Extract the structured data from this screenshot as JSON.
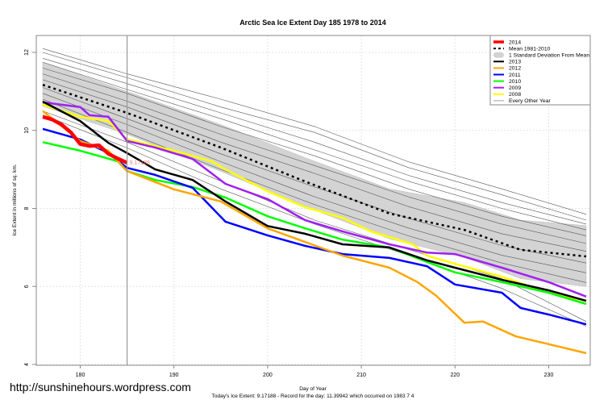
{
  "chart_data": {
    "type": "line",
    "title": "Arctic Sea Ice Extent Day 185 1978 to 2014",
    "xlabel": "Day of Year",
    "ylabel": "Ice Extent in millions of sq. km.",
    "subtitle": "Today's Ice Extent: 9.17188  - Record for the day: 11.39942 which occurred on 1983 7 4",
    "xlim": [
      175.5,
      235
    ],
    "ylim": [
      4,
      12.5
    ],
    "xticks": [
      180,
      190,
      200,
      210,
      220,
      230
    ],
    "yticks": [
      4,
      6,
      8,
      10,
      12
    ],
    "grid": true,
    "legend_position": "top-right",
    "current_day": 185,
    "current_value_label": "9.17188",
    "legend": [
      {
        "label": "2014",
        "color": "#ff0000",
        "style": "thick"
      },
      {
        "label": "Mean 1981-2010",
        "color": "#000000",
        "style": "dashed"
      },
      {
        "label": "1 Standard Deviation From Mean",
        "color": "#d3d3d3",
        "style": "band"
      },
      {
        "label": "2013",
        "color": "#000000",
        "style": "solid"
      },
      {
        "label": "2012",
        "color": "#ffa500",
        "style": "solid"
      },
      {
        "label": "2011",
        "color": "#0000ff",
        "style": "solid"
      },
      {
        "label": "2010",
        "color": "#00ff00",
        "style": "solid"
      },
      {
        "label": "2009",
        "color": "#a020f0",
        "style": "solid"
      },
      {
        "label": "2008",
        "color": "#ffff00",
        "style": "solid"
      },
      {
        "label": "Every Other Year",
        "color": "#a0a0a0",
        "style": "thin"
      }
    ],
    "mean": {
      "name": "Mean 1981-2010",
      "points": [
        [
          176,
          11.17
        ],
        [
          185,
          10.45
        ],
        [
          195,
          9.56
        ],
        [
          204,
          8.69
        ],
        [
          213,
          7.87
        ],
        [
          221,
          7.45
        ],
        [
          227,
          6.94
        ],
        [
          234,
          6.77
        ]
      ]
    },
    "std_band": {
      "name": "1 Standard Deviation From Mean",
      "upper": [
        [
          176,
          11.75
        ],
        [
          185,
          11.0
        ],
        [
          195,
          10.15
        ],
        [
          204,
          9.3
        ],
        [
          213,
          8.5
        ],
        [
          221,
          8.15
        ],
        [
          227,
          7.7
        ],
        [
          234,
          7.56
        ]
      ],
      "lower": [
        [
          176,
          10.62
        ],
        [
          185,
          9.9
        ],
        [
          195,
          8.95
        ],
        [
          204,
          8.05
        ],
        [
          213,
          7.22
        ],
        [
          221,
          6.75
        ],
        [
          227,
          6.2
        ],
        [
          234,
          6.0
        ]
      ]
    },
    "series": [
      {
        "name": "2014",
        "color": "#ff0000",
        "width": 4.5,
        "points": [
          [
            176,
            10.35
          ],
          [
            177,
            10.28
          ],
          [
            178,
            10.15
          ],
          [
            179,
            9.95
          ],
          [
            180,
            9.65
          ],
          [
            181,
            9.6
          ],
          [
            182,
            9.62
          ],
          [
            183,
            9.4
          ],
          [
            184,
            9.28
          ],
          [
            185,
            9.17
          ]
        ]
      },
      {
        "name": "2013",
        "color": "#000000",
        "width": 2.5,
        "points": [
          [
            176,
            10.74
          ],
          [
            180,
            10.24
          ],
          [
            183,
            9.68
          ],
          [
            185,
            9.42
          ],
          [
            188,
            9.0
          ],
          [
            192,
            8.73
          ],
          [
            195.5,
            8.18
          ],
          [
            200,
            7.55
          ],
          [
            204,
            7.35
          ],
          [
            208,
            7.08
          ],
          [
            213,
            7.0
          ],
          [
            217,
            6.67
          ],
          [
            220,
            6.48
          ],
          [
            225,
            6.17
          ],
          [
            230,
            5.9
          ],
          [
            234,
            5.63
          ]
        ]
      },
      {
        "name": "2012",
        "color": "#ffa500",
        "width": 2.5,
        "points": [
          [
            176,
            10.5
          ],
          [
            180,
            9.73
          ],
          [
            183,
            9.48
          ],
          [
            185,
            8.96
          ],
          [
            190,
            8.49
          ],
          [
            195,
            8.18
          ],
          [
            200,
            7.49
          ],
          [
            204,
            7.14
          ],
          [
            208,
            6.79
          ],
          [
            213,
            6.48
          ],
          [
            216,
            6.11
          ],
          [
            218,
            5.76
          ],
          [
            221,
            5.07
          ],
          [
            223,
            5.1
          ],
          [
            226.5,
            4.72
          ],
          [
            230,
            4.52
          ],
          [
            234,
            4.29
          ]
        ]
      },
      {
        "name": "2011",
        "color": "#0000ff",
        "width": 2.5,
        "points": [
          [
            176,
            10.04
          ],
          [
            180,
            9.77
          ],
          [
            183,
            9.42
          ],
          [
            185,
            9.04
          ],
          [
            188,
            8.86
          ],
          [
            192,
            8.53
          ],
          [
            195.5,
            7.66
          ],
          [
            200,
            7.31
          ],
          [
            204,
            7.04
          ],
          [
            208,
            6.83
          ],
          [
            213,
            6.73
          ],
          [
            217,
            6.52
          ],
          [
            220,
            6.05
          ],
          [
            225,
            5.84
          ],
          [
            227,
            5.45
          ],
          [
            230,
            5.28
          ],
          [
            234,
            5.03
          ]
        ]
      },
      {
        "name": "2010",
        "color": "#00ff00",
        "width": 2.5,
        "points": [
          [
            176,
            9.7
          ],
          [
            180,
            9.48
          ],
          [
            184,
            9.21
          ],
          [
            185,
            8.96
          ],
          [
            188,
            8.73
          ],
          [
            192,
            8.55
          ],
          [
            195.5,
            8.28
          ],
          [
            200,
            7.8
          ],
          [
            204,
            7.49
          ],
          [
            208,
            7.2
          ],
          [
            213,
            7.0
          ],
          [
            217,
            6.63
          ],
          [
            220,
            6.36
          ],
          [
            225,
            6.11
          ],
          [
            230,
            5.84
          ],
          [
            234,
            5.55
          ]
        ]
      },
      {
        "name": "2009",
        "color": "#a020f0",
        "width": 2.5,
        "points": [
          [
            176,
            10.72
          ],
          [
            180,
            10.6
          ],
          [
            181,
            10.39
          ],
          [
            183,
            10.35
          ],
          [
            185,
            9.73
          ],
          [
            188,
            9.56
          ],
          [
            192,
            9.27
          ],
          [
            195.5,
            8.63
          ],
          [
            200,
            8.24
          ],
          [
            204,
            7.7
          ],
          [
            208,
            7.41
          ],
          [
            213,
            7.08
          ],
          [
            217,
            6.87
          ],
          [
            220,
            6.83
          ],
          [
            225,
            6.48
          ],
          [
            230,
            6.11
          ],
          [
            234,
            5.74
          ]
        ]
      },
      {
        "name": "2008",
        "color": "#ffff00",
        "width": 2.5,
        "points": [
          [
            176,
            10.66
          ],
          [
            180,
            10.35
          ],
          [
            183,
            10.24
          ],
          [
            185,
            9.77
          ],
          [
            190,
            9.48
          ],
          [
            194,
            9.21
          ],
          [
            195.5,
            9.0
          ],
          [
            200,
            8.44
          ],
          [
            204,
            8.03
          ],
          [
            208,
            7.76
          ],
          [
            211,
            7.41
          ],
          [
            215.5,
            7.08
          ],
          [
            217,
            6.79
          ],
          [
            220,
            6.58
          ],
          [
            225,
            6.25
          ],
          [
            230,
            5.84
          ],
          [
            234,
            5.63
          ]
        ]
      }
    ],
    "other_years": [
      [
        [
          176,
          12.1
        ],
        [
          185,
          11.45
        ],
        [
          195,
          10.8
        ],
        [
          205,
          10.1
        ],
        [
          215,
          9.2
        ],
        [
          225,
          8.5
        ],
        [
          234,
          7.85
        ]
      ],
      [
        [
          176,
          12.0
        ],
        [
          185,
          11.35
        ],
        [
          195,
          10.6
        ],
        [
          205,
          9.95
        ],
        [
          215,
          9.05
        ],
        [
          225,
          8.35
        ],
        [
          234,
          7.7
        ]
      ],
      [
        [
          176,
          11.85
        ],
        [
          185,
          11.2
        ],
        [
          195,
          10.45
        ],
        [
          205,
          9.7
        ],
        [
          215,
          8.85
        ],
        [
          225,
          8.15
        ],
        [
          234,
          7.6
        ]
      ],
      [
        [
          176,
          11.75
        ],
        [
          185,
          11.05
        ],
        [
          195,
          10.3
        ],
        [
          205,
          9.5
        ],
        [
          215,
          8.7
        ],
        [
          225,
          8.0
        ],
        [
          234,
          7.45
        ]
      ],
      [
        [
          176,
          11.6
        ],
        [
          185,
          10.95
        ],
        [
          195,
          10.1
        ],
        [
          205,
          9.35
        ],
        [
          215,
          8.5
        ],
        [
          225,
          7.8
        ],
        [
          234,
          7.3
        ]
      ],
      [
        [
          176,
          11.45
        ],
        [
          185,
          10.75
        ],
        [
          195,
          9.9
        ],
        [
          205,
          9.1
        ],
        [
          215,
          8.3
        ],
        [
          225,
          7.6
        ],
        [
          234,
          7.1
        ]
      ],
      [
        [
          176,
          11.3
        ],
        [
          185,
          10.6
        ],
        [
          195,
          9.7
        ],
        [
          205,
          8.9
        ],
        [
          215,
          8.05
        ],
        [
          225,
          7.35
        ],
        [
          234,
          6.9
        ]
      ],
      [
        [
          176,
          11.1
        ],
        [
          185,
          10.3
        ],
        [
          195,
          9.4
        ],
        [
          205,
          8.55
        ],
        [
          215,
          7.75
        ],
        [
          225,
          7.05
        ],
        [
          234,
          6.6
        ]
      ],
      [
        [
          176,
          10.95
        ],
        [
          185,
          10.15
        ],
        [
          195,
          9.2
        ],
        [
          205,
          8.3
        ],
        [
          215,
          7.5
        ],
        [
          225,
          6.8
        ],
        [
          234,
          6.35
        ]
      ],
      [
        [
          176,
          10.8
        ],
        [
          185,
          9.95
        ],
        [
          195,
          9.0
        ],
        [
          205,
          8.1
        ],
        [
          215,
          7.3
        ],
        [
          225,
          6.6
        ],
        [
          234,
          6.1
        ]
      ],
      [
        [
          176,
          10.5
        ],
        [
          185,
          9.7
        ],
        [
          195,
          8.7
        ],
        [
          205,
          7.7
        ],
        [
          215,
          6.95
        ],
        [
          225,
          6.2
        ],
        [
          234,
          5.1
        ]
      ],
      [
        [
          176,
          10.4
        ],
        [
          185,
          9.55
        ],
        [
          195,
          8.5
        ],
        [
          205,
          7.6
        ],
        [
          215,
          6.8
        ],
        [
          225,
          5.95
        ],
        [
          234,
          4.98
        ]
      ]
    ]
  },
  "watermark": "http://sunshinehours.wordpress.com"
}
